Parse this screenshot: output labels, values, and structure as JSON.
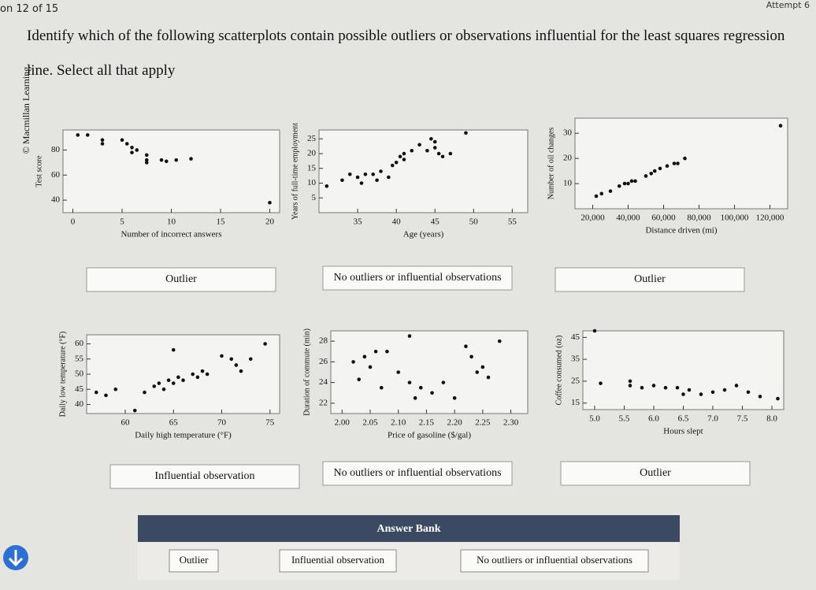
{
  "header": {
    "progress": "on 12 of 15",
    "attempt": "Attempt 6"
  },
  "question": "Identify which of the following scatterplots contain possible outliers or observations influential for the least squares regression line. Select all that apply",
  "watermark": "© Macmillan Learning",
  "plots": [
    {
      "type": "scatter",
      "xlabel": "Number of incorrect answers",
      "ylabel": "Test score",
      "xlim": [
        -1,
        21
      ],
      "ylim": [
        30,
        96
      ],
      "xticks": [
        0,
        5,
        10,
        15,
        20
      ],
      "yticks": [
        40,
        60,
        80
      ],
      "x": [
        0.5,
        1.5,
        3,
        3,
        5,
        5.5,
        6,
        6,
        6.5,
        7.5,
        7.5,
        7.5,
        9,
        9.5,
        10.5,
        12,
        20
      ],
      "y": [
        92,
        92,
        88,
        85,
        88,
        85,
        82,
        78,
        80,
        76,
        72,
        70,
        72,
        71,
        72,
        73,
        38
      ],
      "answer": "Outlier"
    },
    {
      "type": "scatter",
      "xlabel": "Age (years)",
      "ylabel": "Years of full-time employment",
      "xlim": [
        30,
        57
      ],
      "ylim": [
        0,
        28
      ],
      "xticks": [
        35,
        40,
        45,
        50,
        55
      ],
      "yticks": [
        5,
        10,
        15,
        20,
        25
      ],
      "x": [
        31,
        33,
        34,
        35,
        35.5,
        36,
        37,
        37.5,
        38,
        39,
        39.5,
        40,
        40.5,
        41,
        41,
        42,
        43,
        44,
        44.5,
        45,
        45,
        45.5,
        46,
        47,
        49
      ],
      "y": [
        9,
        11,
        13,
        12,
        10,
        13,
        13,
        11,
        14,
        12,
        16,
        17,
        19,
        18,
        20,
        21,
        23,
        21,
        25,
        24,
        22,
        20,
        19,
        20,
        27
      ],
      "answer": "No outliers or influential observations"
    },
    {
      "type": "scatter",
      "xlabel": "Distance driven (mi)",
      "ylabel": "Number of oil changes",
      "xlim": [
        10000,
        130000
      ],
      "ylim": [
        0,
        36
      ],
      "xticks": [
        {
          "value": 20000,
          "label": "20,000"
        },
        {
          "value": 40000,
          "label": "40,000"
        },
        {
          "value": 60000,
          "label": "60,000"
        },
        {
          "value": 80000,
          "label": "80,000"
        },
        {
          "value": 100000,
          "label": "100,000"
        },
        {
          "value": 120000,
          "label": "120,000"
        }
      ],
      "yticks": [
        10,
        20,
        30
      ],
      "x": [
        22000,
        25000,
        30000,
        35000,
        38000,
        40000,
        42000,
        44000,
        50000,
        53000,
        55000,
        58000,
        62000,
        66000,
        68000,
        72000,
        126000
      ],
      "y": [
        5,
        6,
        7,
        9,
        10,
        10,
        11,
        11,
        13,
        14,
        15,
        16,
        17,
        18,
        18,
        20,
        33
      ],
      "answer": "Outlier"
    },
    {
      "type": "scatter",
      "xlabel": "Daily high temperature (°F)",
      "ylabel": "Daily low temperature (°F)",
      "xlim": [
        56,
        76
      ],
      "ylim": [
        37,
        63
      ],
      "xticks": [
        60,
        65,
        70,
        75
      ],
      "yticks": [
        40,
        45,
        50,
        55,
        60
      ],
      "x": [
        57,
        58,
        59,
        61,
        62,
        63,
        63.5,
        64,
        64.5,
        65,
        65,
        65.5,
        66,
        67,
        67.5,
        68,
        68.5,
        70,
        71,
        71.5,
        72,
        73,
        74.5
      ],
      "y": [
        44,
        43,
        45,
        38,
        44,
        46,
        47,
        45,
        48,
        47,
        58,
        49,
        48,
        50,
        49,
        51,
        50,
        56,
        55,
        53,
        51,
        55,
        60
      ],
      "answer": "Influential observation"
    },
    {
      "type": "scatter",
      "xlabel": "Price of gasoline ($/gal)",
      "ylabel": "Duration of commute (min)",
      "xlim": [
        1.98,
        2.33
      ],
      "ylim": [
        21,
        29
      ],
      "xticks": [
        {
          "value": 2.0,
          "label": "2.00"
        },
        2.05,
        {
          "value": 2.1,
          "label": "2.10"
        },
        2.15,
        {
          "value": 2.2,
          "label": "2.20"
        },
        2.25,
        {
          "value": 2.3,
          "label": "2.30"
        }
      ],
      "yticks": [
        22,
        24,
        26,
        28
      ],
      "x": [
        2.02,
        2.03,
        2.04,
        2.05,
        2.06,
        2.07,
        2.08,
        2.1,
        2.12,
        2.12,
        2.13,
        2.14,
        2.16,
        2.18,
        2.2,
        2.22,
        2.23,
        2.24,
        2.25,
        2.26,
        2.28
      ],
      "y": [
        26,
        24.3,
        26.5,
        25.5,
        27,
        23.5,
        27,
        25,
        28.5,
        24,
        22.5,
        23.5,
        23,
        24,
        22.5,
        27.5,
        26.5,
        25,
        25.5,
        24.5,
        28
      ],
      "answer": "No outliers or influential observations"
    },
    {
      "type": "scatter",
      "xlabel": "Hours slept",
      "ylabel": "Coffee consumed (oz)",
      "xlim": [
        4.8,
        8.2
      ],
      "ylim": [
        12,
        48
      ],
      "xticks": [
        {
          "value": 5.0,
          "label": "5.0"
        },
        5.5,
        {
          "value": 6.0,
          "label": "6.0"
        },
        6.5,
        {
          "value": 7.0,
          "label": "7.0"
        },
        7.5,
        {
          "value": 8.0,
          "label": "8.0"
        }
      ],
      "yticks": [
        15,
        25,
        35,
        45
      ],
      "x": [
        5.0,
        5.1,
        5.6,
        5.6,
        5.8,
        6.0,
        6.2,
        6.4,
        6.5,
        6.6,
        6.8,
        7.0,
        7.2,
        7.4,
        7.6,
        7.8,
        8.1
      ],
      "y": [
        48,
        24,
        25,
        23,
        22,
        23,
        22,
        22,
        19,
        21,
        19,
        20,
        21,
        23,
        20,
        18,
        17
      ],
      "answer": "Outlier"
    }
  ],
  "answer_bank": {
    "title": "Answer Bank",
    "options": [
      "Outlier",
      "Influential observation",
      "No outliers or influential observations"
    ]
  }
}
